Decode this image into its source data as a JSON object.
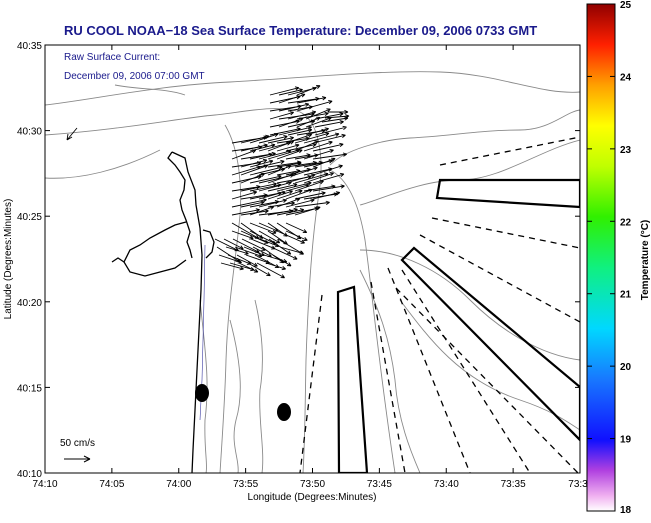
{
  "title": "RU COOL  NOAA−18  Sea Surface Temperature:  December 09, 2006 0733 GMT",
  "current_label": "Raw Surface Current:",
  "current_time": "December 09, 2006 07:00 GMT",
  "scale_label": "50 cm/s",
  "xlabel": "Longitude (Degrees:Minutes)",
  "ylabel": "Latitude (Degrees:Minutes)",
  "x_ticks": [
    "74:10",
    "74:05",
    "74:00",
    "73:55",
    "73:50",
    "73:45",
    "73:40",
    "73:35",
    "73:3"
  ],
  "y_ticks": [
    "40:35",
    "40:30",
    "40:25",
    "40:20",
    "40:15",
    "40:10"
  ],
  "colorbar": {
    "label": "Temperature (°C)",
    "ticks": [
      "25",
      "24",
      "23",
      "22",
      "21",
      "20",
      "19",
      "18"
    ],
    "min": 18,
    "max": 25
  },
  "colors": {
    "title": "#1a1a8c",
    "coast": "#000000",
    "contour": "#8a8a8a"
  }
}
